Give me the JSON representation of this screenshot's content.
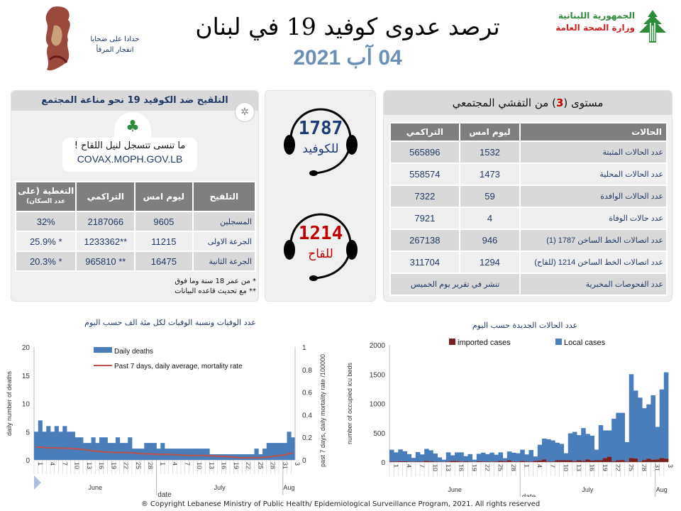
{
  "header": {
    "title": "ترصد عدوى كوفيد 19 في لبنان",
    "date": "04 آب 2021",
    "memorial_text": [
      "حدادا على ضحايا",
      "انفجار المرفأ"
    ],
    "ministry_line1": "الجمهورية اللبنانية",
    "ministry_line2": "وزارة الصحة العامة"
  },
  "community": {
    "title_pre": "مستوى (",
    "level": "3",
    "title_post": ") من التفشي المجتمعي",
    "columns": [
      "الحالات",
      "ليوم امس",
      "التراكمي"
    ],
    "rows": [
      {
        "label": "عدد الحالات المثبتة",
        "yesterday": "1532",
        "cumulative": "565896"
      },
      {
        "label": "عدد الحالات المحلية",
        "yesterday": "1473",
        "cumulative": "558574"
      },
      {
        "label": "عدد الحالات الوافدة",
        "yesterday": "59",
        "cumulative": "7322"
      },
      {
        "label": "عدد حالات الوفاة",
        "yesterday": "4",
        "cumulative": "7921"
      },
      {
        "label": "عدد اتصالات الخط الساخن 1787  (1)",
        "yesterday": "946",
        "cumulative": "267138"
      },
      {
        "label": "عدد اتصالات الخط الساخن 1214 (للقاح)",
        "yesterday": "1294",
        "cumulative": "311704"
      }
    ],
    "tests_label": "عدد الفحوصات المخبرية",
    "tests_value": "تنشر في تقرير يوم الخميس"
  },
  "hotlines": [
    {
      "number": "1787",
      "label": "للكوفيد",
      "color": "#1f3a78"
    },
    {
      "number": "1214",
      "label": "للقاح",
      "color": "#c00000"
    }
  ],
  "vaccine": {
    "title": "التلقيح ضد الكوفيد 19  نحو مناعة المجتمع",
    "reminder": "ما تنسى تتسجل لنيل اللقاح !",
    "url": "COVAX.MOPH.GOV.LB",
    "columns": [
      "التلقيح",
      "ليوم امس",
      "التراكمي",
      "التغطية (على",
      "عدد السكان)"
    ],
    "rows": [
      {
        "label": "المسجلين",
        "yesterday": "9605",
        "cumulative": "2187066",
        "coverage": "32%"
      },
      {
        "label": "الجرعة الاولى",
        "yesterday": "11215",
        "cumulative": "**1233362",
        "coverage": "* 25.9%"
      },
      {
        "label": "الجرعة الثانية",
        "yesterday": "16475",
        "cumulative": "** 965810",
        "coverage": "* 20.3%"
      }
    ],
    "notes": [
      "* من عمر 18 سنة وما فوق",
      "** مع تحديث قاعده البيانات"
    ]
  },
  "chart_data": [
    {
      "type": "bar",
      "title": "عدد الوفيات ونسبة الوفيات لكل مئة الف حسب اليوم",
      "xlabel": "date",
      "ylabel": "daily number of deaths",
      "y2label": "past 7 days, daily mortality rate /100000",
      "ylim": [
        0,
        20
      ],
      "yticks": [
        "0",
        "5",
        "10",
        "15",
        "20"
      ],
      "y2lim": [
        0,
        1
      ],
      "y2ticks": [
        "0",
        "0.2",
        "0.4",
        "0.6",
        "0.8",
        "1"
      ],
      "months": [
        "June",
        "July",
        "Aug"
      ],
      "x": [
        1,
        2,
        3,
        4,
        5,
        6,
        7,
        8,
        9,
        10,
        11,
        12,
        13,
        14,
        15,
        16,
        17,
        18,
        19,
        20,
        21,
        22,
        23,
        24,
        25,
        26,
        27,
        28,
        29,
        30,
        1,
        2,
        3,
        4,
        5,
        6,
        7,
        8,
        9,
        10,
        11,
        12,
        13,
        14,
        15,
        16,
        17,
        18,
        19,
        20,
        21,
        22,
        23,
        24,
        25,
        26,
        27,
        28,
        29,
        30,
        31,
        1,
        2,
        3
      ],
      "series": [
        {
          "name": "Daily deaths",
          "type": "bar",
          "color": "#4a7ebb",
          "values": [
            5,
            7,
            5,
            6,
            5,
            6,
            5,
            6,
            5,
            5,
            4,
            4,
            3,
            3,
            4,
            3,
            4,
            4,
            3,
            3,
            4,
            3,
            3,
            4,
            2,
            2,
            2,
            3,
            3,
            3,
            2,
            3,
            2,
            2,
            2,
            2,
            2,
            2,
            2,
            2,
            2,
            2,
            2,
            1,
            1,
            1,
            1,
            1,
            1,
            1,
            1,
            1,
            1,
            1,
            2,
            1,
            2,
            3,
            3,
            3,
            3,
            3,
            5,
            4
          ]
        },
        {
          "name": "Past 7 days, daily average, mortality rate",
          "type": "line",
          "axis": "right",
          "color": "#c0504d",
          "values": [
            0.115,
            0.113,
            0.11,
            0.108,
            0.107,
            0.106,
            0.104,
            0.104,
            0.102,
            0.1,
            0.097,
            0.094,
            0.09,
            0.085,
            0.08,
            0.076,
            0.073,
            0.07,
            0.068,
            0.066,
            0.066,
            0.066,
            0.065,
            0.064,
            0.062,
            0.058,
            0.055,
            0.053,
            0.053,
            0.052,
            0.048,
            0.049,
            0.05,
            0.048,
            0.046,
            0.044,
            0.042,
            0.04,
            0.039,
            0.039,
            0.039,
            0.039,
            0.038,
            0.036,
            0.034,
            0.032,
            0.03,
            0.028,
            0.025,
            0.022,
            0.02,
            0.02,
            0.02,
            0.02,
            0.02,
            0.021,
            0.023,
            0.027,
            0.032,
            0.036,
            0.04,
            0.045,
            0.055,
            0.062
          ]
        }
      ]
    },
    {
      "type": "bar",
      "stacked": true,
      "title": "عدد الحالات الجديدة حسب اليوم",
      "xlabel": "date",
      "ylabel": "number of occupied icu beds",
      "ylim": [
        0,
        2000
      ],
      "yticks": [
        "0",
        "500",
        "1000",
        "1500",
        "2000"
      ],
      "months": [
        "June",
        "July",
        "Aug"
      ],
      "series": [
        {
          "name": "imported cases",
          "color": "#7b2020",
          "values": [
            10,
            10,
            15,
            12,
            8,
            5,
            10,
            8,
            20,
            12,
            10,
            5,
            3,
            10,
            20,
            20,
            10,
            12,
            8,
            3,
            15,
            10,
            10,
            8,
            10,
            20,
            15,
            30,
            10,
            10,
            20,
            10,
            8,
            20,
            25,
            45,
            10,
            10,
            30,
            30,
            30,
            30,
            15,
            30,
            20,
            45,
            25,
            30,
            30,
            70,
            90,
            15,
            30,
            35,
            10,
            70,
            60,
            10,
            35,
            55,
            40,
            45,
            70,
            59
          ]
        },
        {
          "name": "Local cases",
          "color": "#4a7ebb",
          "values": [
            200,
            155,
            200,
            173,
            127,
            65,
            160,
            122,
            205,
            188,
            135,
            75,
            37,
            155,
            95,
            145,
            155,
            88,
            127,
            37,
            125,
            150,
            125,
            152,
            115,
            145,
            50,
            150,
            150,
            140,
            190,
            120,
            197,
            75,
            270,
            355,
            380,
            360,
            300,
            280,
            120,
            460,
            500,
            430,
            560,
            435,
            425,
            180,
            600,
            470,
            450,
            725,
            810,
            805,
            330,
            1430,
            1160,
            1090,
            885,
            930,
            1100,
            555,
            1170,
            1473
          ]
        }
      ]
    }
  ],
  "footer": "® Copyright Lebanese Ministry of Public Health/ Epidemiological Surveillance Program, 2021. All rights reserved"
}
